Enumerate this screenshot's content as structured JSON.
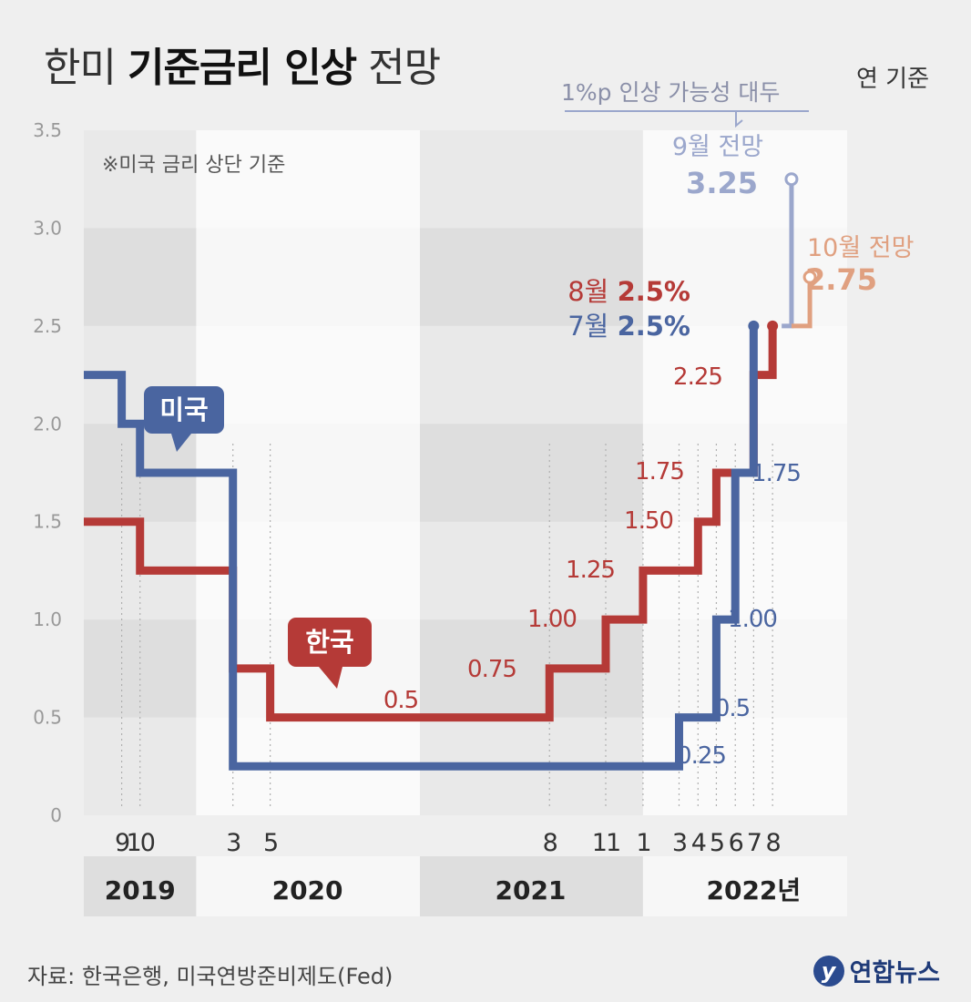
{
  "header": {
    "title_prefix": "한미",
    "title_bold": "기준금리 인상",
    "title_suffix": "전망",
    "unit": "연 기준",
    "annotation": "1%p 인상 가능성 대두"
  },
  "footer": {
    "source": "자료: 한국은행, 미국연방준비제도(Fed)",
    "logo_mark": "y",
    "logo_text": "연합뉴스"
  },
  "colors": {
    "us": "#4a65a0",
    "korea": "#b53a37",
    "us_forecast": "#9ba7cc",
    "korea_forecast": "#e0a080",
    "band_dark": "#dedede",
    "band_light": "#f7f7f7"
  },
  "chart_data": {
    "type": "line",
    "step": true,
    "note": "※미국 금리 상단 기준",
    "ylim": [
      0,
      3.5
    ],
    "yticks": [
      "0",
      "0.5",
      "1.0",
      "1.5",
      "2.0",
      "2.5",
      "3.0",
      "3.5"
    ],
    "month_ticks": [
      "9",
      "10",
      "3",
      "5",
      "8",
      "11",
      "1",
      "3",
      "4",
      "5",
      "6",
      "7",
      "8"
    ],
    "year_labels": [
      "2019",
      "2020",
      "2021",
      "2022년"
    ],
    "series": [
      {
        "name": "미국",
        "values": [
          {
            "date": "2019-07",
            "rate": 2.25
          },
          {
            "date": "2019-09",
            "rate": 2.0
          },
          {
            "date": "2019-10",
            "rate": 1.75
          },
          {
            "date": "2020-03",
            "rate": 1.25
          },
          {
            "date": "2020-03",
            "rate": 0.25
          },
          {
            "date": "2022-03",
            "rate": 0.5
          },
          {
            "date": "2022-05",
            "rate": 1.0
          },
          {
            "date": "2022-06",
            "rate": 1.75
          },
          {
            "date": "2022-07",
            "rate": 2.5
          }
        ],
        "forecast": {
          "label": "9월 전망",
          "value": "3.25",
          "date": "2022-09",
          "rate": 3.25
        }
      },
      {
        "name": "한국",
        "values": [
          {
            "date": "2019-07",
            "rate": 1.5
          },
          {
            "date": "2019-10",
            "rate": 1.25
          },
          {
            "date": "2020-03",
            "rate": 0.75
          },
          {
            "date": "2020-05",
            "rate": 0.5
          },
          {
            "date": "2021-08",
            "rate": 0.75
          },
          {
            "date": "2021-11",
            "rate": 1.0
          },
          {
            "date": "2022-01",
            "rate": 1.25
          },
          {
            "date": "2022-04",
            "rate": 1.5
          },
          {
            "date": "2022-05",
            "rate": 1.75
          },
          {
            "date": "2022-07",
            "rate": 2.25
          },
          {
            "date": "2022-08",
            "rate": 2.5
          }
        ],
        "forecast": {
          "label": "10월 전망",
          "value": "2.75",
          "date": "2022-10",
          "rate": 2.75
        }
      }
    ],
    "data_labels": {
      "korea": [
        {
          "text": "0.5",
          "date": "2021-01",
          "rate": 0.5
        },
        {
          "text": "0.75",
          "date": "2021-06",
          "rate": 0.75
        },
        {
          "text": "1.00",
          "date": "2021-10",
          "rate": 1.0
        },
        {
          "text": "1.25",
          "date": "2021-12",
          "rate": 1.25
        },
        {
          "text": "1.50",
          "date": "2022-03",
          "rate": 1.5
        },
        {
          "text": "1.75",
          "date": "2022-04",
          "rate": 1.75
        },
        {
          "text": "2.25",
          "date": "2022-06",
          "rate": 2.25
        }
      ],
      "us": [
        {
          "text": "0.25",
          "date": "2022-03",
          "rate": 0.25
        },
        {
          "text": "0.5",
          "date": "2022-05",
          "rate": 0.5
        },
        {
          "text": "1.00",
          "date": "2022-06",
          "rate": 1.0
        },
        {
          "text": "1.75",
          "date": "2022-07",
          "rate": 1.75
        }
      ]
    },
    "callouts": [
      {
        "month": "8월",
        "value": "2.5%",
        "series": "korea"
      },
      {
        "month": "7월",
        "value": "2.5%",
        "series": "us"
      }
    ],
    "series_tags": [
      {
        "text": "미국",
        "series": "us"
      },
      {
        "text": "한국",
        "series": "korea"
      }
    ]
  }
}
